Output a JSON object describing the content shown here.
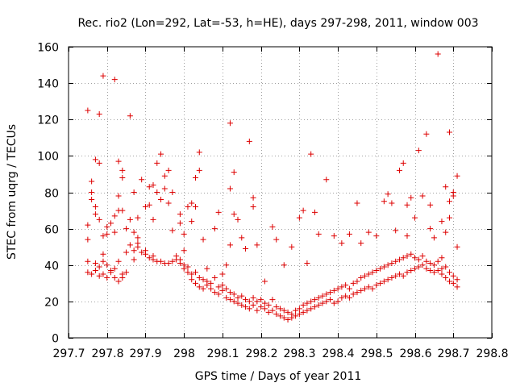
{
  "chart_data": {
    "type": "scatter",
    "title": "Rec. rio2 (Lon=292, Lat=-53, h=HE), days 297-298, 2011, window 003",
    "xlabel": "GPS time / Days of year 2011",
    "ylabel": "STEC from uqrg / TECUs",
    "xlim": [
      297.7,
      298.8
    ],
    "ylim": [
      0,
      160
    ],
    "xticks": [
      297.7,
      297.8,
      297.9,
      298.0,
      298.1,
      298.2,
      298.3,
      298.4,
      298.5,
      298.6,
      298.7,
      298.8
    ],
    "xtick_labels": [
      "297.7",
      "297.8",
      "297.9",
      "298",
      "298.1",
      "298.2",
      "298.3",
      "298.4",
      "298.5",
      "298.6",
      "298.7",
      "298.8"
    ],
    "yticks": [
      0,
      20,
      40,
      60,
      80,
      100,
      120,
      140,
      160
    ],
    "ytick_labels": [
      "0",
      "20",
      "40",
      "60",
      "80",
      "100",
      "120",
      "140",
      "160"
    ],
    "grid": true,
    "marker": "+",
    "color": "#dd0000",
    "series": [
      {
        "name": "",
        "points": [
          [
            297.75,
            125
          ],
          [
            297.75,
            54
          ],
          [
            297.75,
            62
          ],
          [
            297.76,
            86
          ],
          [
            297.76,
            80
          ],
          [
            297.76,
            76
          ],
          [
            297.77,
            98
          ],
          [
            297.77,
            72
          ],
          [
            297.77,
            68
          ],
          [
            297.78,
            123
          ],
          [
            297.78,
            96
          ],
          [
            297.78,
            65
          ],
          [
            297.79,
            144
          ],
          [
            297.79,
            46
          ],
          [
            297.79,
            56
          ],
          [
            297.8,
            61
          ],
          [
            297.8,
            57
          ],
          [
            297.81,
            63
          ],
          [
            297.82,
            142
          ],
          [
            297.82,
            67
          ],
          [
            297.82,
            58
          ],
          [
            297.83,
            97
          ],
          [
            297.83,
            78
          ],
          [
            297.83,
            70
          ],
          [
            297.84,
            70
          ],
          [
            297.84,
            92
          ],
          [
            297.84,
            88
          ],
          [
            297.85,
            60
          ],
          [
            297.86,
            122
          ],
          [
            297.86,
            65
          ],
          [
            297.87,
            80
          ],
          [
            297.87,
            58
          ],
          [
            297.88,
            55
          ],
          [
            297.88,
            66
          ],
          [
            297.89,
            87
          ],
          [
            297.9,
            72
          ],
          [
            297.91,
            83
          ],
          [
            297.91,
            73
          ],
          [
            297.92,
            84
          ],
          [
            297.92,
            65
          ],
          [
            297.93,
            96
          ],
          [
            297.93,
            80
          ],
          [
            297.94,
            101
          ],
          [
            297.94,
            76
          ],
          [
            297.95,
            89
          ],
          [
            297.95,
            82
          ],
          [
            297.96,
            92
          ],
          [
            297.96,
            74
          ],
          [
            297.97,
            80
          ],
          [
            297.97,
            59
          ],
          [
            297.99,
            68
          ],
          [
            297.99,
            63
          ],
          [
            298.0,
            57
          ],
          [
            298.0,
            48
          ],
          [
            298.01,
            72
          ],
          [
            298.02,
            74
          ],
          [
            298.02,
            64
          ],
          [
            298.03,
            88
          ],
          [
            298.03,
            72
          ],
          [
            298.04,
            92
          ],
          [
            298.04,
            102
          ],
          [
            298.05,
            54
          ],
          [
            298.06,
            38
          ],
          [
            298.08,
            60
          ],
          [
            298.09,
            69
          ],
          [
            298.1,
            35
          ],
          [
            298.11,
            40
          ],
          [
            298.12,
            118
          ],
          [
            298.12,
            82
          ],
          [
            298.12,
            51
          ],
          [
            298.13,
            91
          ],
          [
            298.13,
            68
          ],
          [
            298.14,
            65
          ],
          [
            298.15,
            55
          ],
          [
            298.16,
            49
          ],
          [
            298.17,
            108
          ],
          [
            298.18,
            72
          ],
          [
            298.18,
            77
          ],
          [
            298.19,
            51
          ],
          [
            298.21,
            31
          ],
          [
            298.23,
            61
          ],
          [
            298.24,
            54
          ],
          [
            298.26,
            40
          ],
          [
            298.28,
            50
          ],
          [
            298.3,
            66
          ],
          [
            298.31,
            70
          ],
          [
            298.32,
            41
          ],
          [
            298.33,
            101
          ],
          [
            298.34,
            69
          ],
          [
            298.35,
            57
          ],
          [
            298.37,
            87
          ],
          [
            298.39,
            56
          ],
          [
            298.41,
            52
          ],
          [
            298.43,
            57
          ],
          [
            298.45,
            74
          ],
          [
            298.46,
            52
          ],
          [
            298.48,
            58
          ],
          [
            298.5,
            56
          ],
          [
            298.52,
            75
          ],
          [
            298.53,
            79
          ],
          [
            298.54,
            74
          ],
          [
            298.55,
            59
          ],
          [
            298.56,
            92
          ],
          [
            298.57,
            96
          ],
          [
            298.58,
            73
          ],
          [
            298.58,
            56
          ],
          [
            298.59,
            77
          ],
          [
            298.6,
            66
          ],
          [
            298.61,
            103
          ],
          [
            298.62,
            78
          ],
          [
            298.63,
            112
          ],
          [
            298.64,
            73
          ],
          [
            298.64,
            60
          ],
          [
            298.65,
            55
          ],
          [
            298.66,
            156
          ],
          [
            298.67,
            64
          ],
          [
            298.67,
            44
          ],
          [
            298.68,
            83
          ],
          [
            298.68,
            58
          ],
          [
            298.69,
            113
          ],
          [
            298.69,
            75
          ],
          [
            298.69,
            66
          ],
          [
            298.7,
            80
          ],
          [
            298.7,
            78
          ],
          [
            298.71,
            89
          ],
          [
            298.71,
            50
          ],
          [
            297.75,
            42
          ],
          [
            297.75,
            36
          ],
          [
            297.76,
            35
          ],
          [
            297.77,
            41
          ],
          [
            297.77,
            37
          ],
          [
            297.78,
            34
          ],
          [
            297.78,
            39
          ],
          [
            297.79,
            42
          ],
          [
            297.79,
            35
          ],
          [
            297.8,
            33
          ],
          [
            297.8,
            40
          ],
          [
            297.81,
            37
          ],
          [
            297.81,
            36
          ],
          [
            297.82,
            33
          ],
          [
            297.82,
            38
          ],
          [
            297.83,
            31
          ],
          [
            297.83,
            42
          ],
          [
            297.84,
            35
          ],
          [
            297.84,
            33
          ],
          [
            297.85,
            47
          ],
          [
            297.85,
            36
          ],
          [
            297.86,
            51
          ],
          [
            297.87,
            48
          ],
          [
            297.87,
            43
          ],
          [
            297.88,
            52
          ],
          [
            297.88,
            50
          ],
          [
            297.89,
            47
          ],
          [
            297.9,
            46
          ],
          [
            297.9,
            48
          ],
          [
            297.91,
            44
          ],
          [
            297.92,
            43
          ],
          [
            297.92,
            45
          ],
          [
            297.93,
            42
          ],
          [
            297.94,
            42
          ],
          [
            297.95,
            41
          ],
          [
            297.96,
            41
          ],
          [
            297.97,
            42
          ],
          [
            297.98,
            43
          ],
          [
            297.98,
            45
          ],
          [
            297.99,
            41
          ],
          [
            297.99,
            43
          ],
          [
            298.0,
            40
          ],
          [
            298.0,
            38
          ],
          [
            298.01,
            39
          ],
          [
            298.01,
            36
          ],
          [
            298.02,
            35
          ],
          [
            298.02,
            32
          ],
          [
            298.03,
            36
          ],
          [
            298.03,
            30
          ],
          [
            298.04,
            33
          ],
          [
            298.04,
            28
          ],
          [
            298.05,
            32
          ],
          [
            298.05,
            27
          ],
          [
            298.06,
            29
          ],
          [
            298.06,
            31
          ],
          [
            298.07,
            30
          ],
          [
            298.07,
            27
          ],
          [
            298.08,
            33
          ],
          [
            298.08,
            25
          ],
          [
            298.09,
            28
          ],
          [
            298.09,
            24
          ],
          [
            298.1,
            26
          ],
          [
            298.1,
            29
          ],
          [
            298.11,
            22
          ],
          [
            298.11,
            27
          ],
          [
            298.12,
            21
          ],
          [
            298.12,
            25
          ],
          [
            298.13,
            20
          ],
          [
            298.13,
            24
          ],
          [
            298.14,
            19
          ],
          [
            298.14,
            22
          ],
          [
            298.15,
            18
          ],
          [
            298.15,
            23
          ],
          [
            298.16,
            17
          ],
          [
            298.16,
            21
          ],
          [
            298.17,
            20
          ],
          [
            298.17,
            16
          ],
          [
            298.18,
            18
          ],
          [
            298.18,
            22
          ],
          [
            298.19,
            15
          ],
          [
            298.19,
            20
          ],
          [
            298.2,
            17
          ],
          [
            298.2,
            21
          ],
          [
            298.21,
            16
          ],
          [
            298.21,
            19
          ],
          [
            298.22,
            14
          ],
          [
            298.22,
            18
          ],
          [
            298.23,
            15
          ],
          [
            298.23,
            21
          ],
          [
            298.24,
            13
          ],
          [
            298.24,
            17
          ],
          [
            298.25,
            12
          ],
          [
            298.25,
            16
          ],
          [
            298.26,
            11
          ],
          [
            298.26,
            15
          ],
          [
            298.27,
            10
          ],
          [
            298.27,
            14
          ],
          [
            298.28,
            11
          ],
          [
            298.28,
            13
          ],
          [
            298.29,
            12
          ],
          [
            298.29,
            15
          ],
          [
            298.3,
            13
          ],
          [
            298.3,
            16
          ],
          [
            298.31,
            14
          ],
          [
            298.31,
            18
          ],
          [
            298.32,
            15
          ],
          [
            298.32,
            19
          ],
          [
            298.33,
            16
          ],
          [
            298.33,
            20
          ],
          [
            298.34,
            17
          ],
          [
            298.34,
            21
          ],
          [
            298.35,
            18
          ],
          [
            298.35,
            22
          ],
          [
            298.36,
            19
          ],
          [
            298.36,
            23
          ],
          [
            298.37,
            20
          ],
          [
            298.37,
            24
          ],
          [
            298.38,
            21
          ],
          [
            298.38,
            25
          ],
          [
            298.39,
            19
          ],
          [
            298.39,
            26
          ],
          [
            298.4,
            20
          ],
          [
            298.4,
            27
          ],
          [
            298.41,
            22
          ],
          [
            298.41,
            28
          ],
          [
            298.42,
            23
          ],
          [
            298.42,
            29
          ],
          [
            298.43,
            22
          ],
          [
            298.43,
            27
          ],
          [
            298.44,
            24
          ],
          [
            298.44,
            30
          ],
          [
            298.45,
            25
          ],
          [
            298.45,
            31
          ],
          [
            298.46,
            26
          ],
          [
            298.46,
            33
          ],
          [
            298.47,
            27
          ],
          [
            298.47,
            34
          ],
          [
            298.48,
            28
          ],
          [
            298.48,
            35
          ],
          [
            298.49,
            27
          ],
          [
            298.49,
            36
          ],
          [
            298.5,
            29
          ],
          [
            298.5,
            37
          ],
          [
            298.51,
            30
          ],
          [
            298.51,
            38
          ],
          [
            298.52,
            31
          ],
          [
            298.52,
            39
          ],
          [
            298.53,
            32
          ],
          [
            298.53,
            40
          ],
          [
            298.54,
            33
          ],
          [
            298.54,
            41
          ],
          [
            298.55,
            34
          ],
          [
            298.55,
            42
          ],
          [
            298.56,
            35
          ],
          [
            298.56,
            43
          ],
          [
            298.57,
            34
          ],
          [
            298.57,
            44
          ],
          [
            298.58,
            36
          ],
          [
            298.58,
            45
          ],
          [
            298.59,
            37
          ],
          [
            298.59,
            46
          ],
          [
            298.6,
            38
          ],
          [
            298.6,
            44
          ],
          [
            298.61,
            39
          ],
          [
            298.61,
            43
          ],
          [
            298.62,
            40
          ],
          [
            298.62,
            45
          ],
          [
            298.63,
            38
          ],
          [
            298.63,
            42
          ],
          [
            298.64,
            37
          ],
          [
            298.64,
            41
          ],
          [
            298.65,
            36
          ],
          [
            298.65,
            40
          ],
          [
            298.66,
            37
          ],
          [
            298.66,
            42
          ],
          [
            298.67,
            38
          ],
          [
            298.67,
            35
          ],
          [
            298.68,
            39
          ],
          [
            298.68,
            33
          ],
          [
            298.69,
            36
          ],
          [
            298.69,
            31
          ],
          [
            298.7,
            34
          ],
          [
            298.7,
            30
          ],
          [
            298.71,
            28
          ],
          [
            298.71,
            32
          ]
        ]
      }
    ]
  }
}
